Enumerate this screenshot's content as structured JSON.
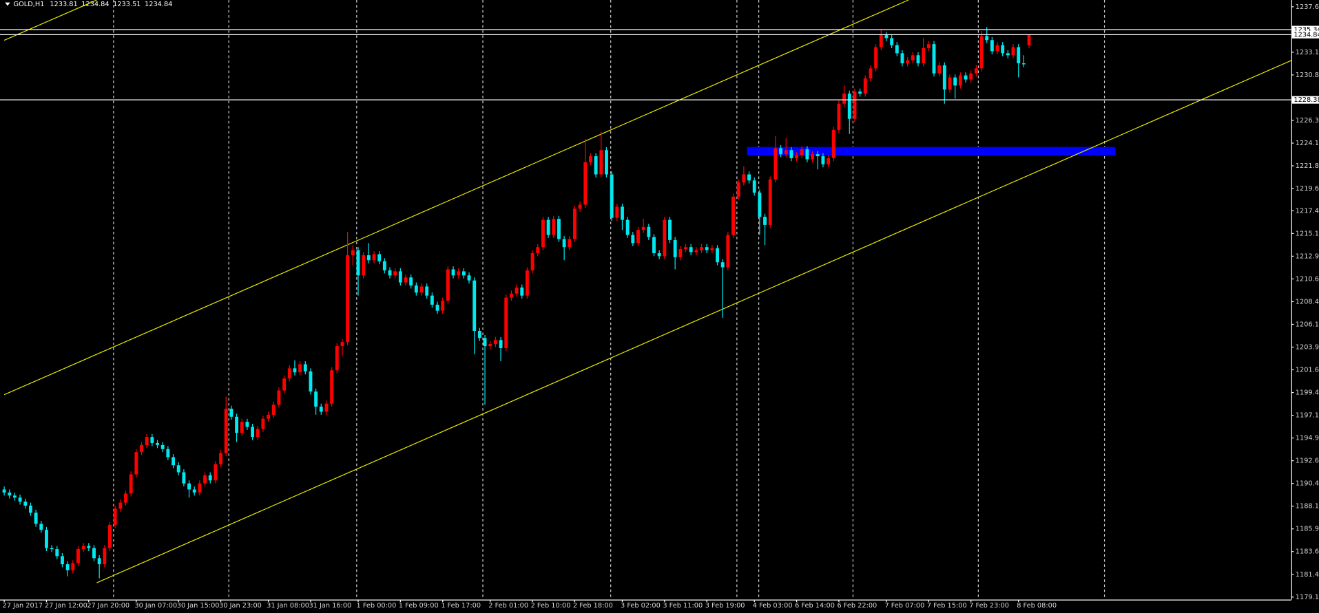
{
  "chart_data": {
    "type": "candlestick",
    "title": "GOLD,H1",
    "up_color": "#ff0000",
    "down_color": "#00e8f0",
    "hline_color": "#ffffff",
    "ylim": [
      1178.9,
      1238.27
    ],
    "yticks": [
      {
        "value": 1237.6,
        "label": "1237.60"
      },
      {
        "value": 1233.1,
        "label": "1233.10"
      },
      1230.85,
      1226.35,
      {
        "value": 1224.1,
        "label": "1224.10"
      },
      1221.85,
      {
        "value": 1219.6,
        "label": "1219.60"
      },
      {
        "value": 1217.4,
        "label": "1217.40"
      },
      1215.15,
      {
        "value": 1212.9,
        "label": "1212.90"
      },
      1210.65,
      {
        "value": 1208.4,
        "label": "1208.40"
      },
      1206.15,
      {
        "value": 1203.9,
        "label": "1203.90"
      },
      1201.65,
      {
        "value": 1199.4,
        "label": "1199.40"
      },
      1197.15,
      {
        "value": 1194.9,
        "label": "1194.90"
      },
      1192.65,
      {
        "value": 1190.4,
        "label": "1190.40"
      },
      1188.15,
      {
        "value": 1185.9,
        "label": "1185.90"
      },
      1183.65,
      {
        "value": 1181.4,
        "label": "1181.40"
      },
      1179.15
    ],
    "hlines": [
      1235.34,
      1234.84,
      1228.38
    ],
    "categories": [
      "27 Jan 2017",
      null,
      null,
      null,
      null,
      null,
      null,
      null,
      "27 Jan 12:00",
      null,
      null,
      null,
      null,
      null,
      null,
      null,
      "27 Jan 20:00",
      null,
      null,
      null,
      null,
      null,
      null,
      null,
      null,
      "30 Jan 07:00",
      null,
      null,
      null,
      null,
      null,
      null,
      null,
      "30 Jan 15:00",
      null,
      null,
      null,
      null,
      null,
      null,
      null,
      "30 Jan 23:00",
      null,
      null,
      null,
      null,
      null,
      null,
      null,
      null,
      "31 Jan 08:00",
      null,
      null,
      null,
      null,
      null,
      null,
      null,
      "31 Jan 16:00",
      null,
      null,
      null,
      null,
      null,
      null,
      null,
      null,
      "1 Feb 00:00",
      null,
      null,
      null,
      null,
      null,
      null,
      null,
      "1 Feb 09:00",
      null,
      null,
      null,
      null,
      null,
      null,
      null,
      "1 Feb 17:00",
      null,
      null,
      null,
      null,
      null,
      null,
      null,
      null,
      "2 Feb 01:00",
      null,
      null,
      null,
      null,
      null,
      null,
      null,
      "2 Feb 10:00",
      null,
      null,
      null,
      null,
      null,
      null,
      null,
      "2 Feb 18:00",
      null,
      null,
      null,
      null,
      null,
      null,
      null,
      null,
      "3 Feb 02:00",
      null,
      null,
      null,
      null,
      null,
      null,
      null,
      "3 Feb 11:00",
      null,
      null,
      null,
      null,
      null,
      null,
      null,
      "3 Feb 19:00",
      null,
      null,
      null,
      null,
      null,
      null,
      null,
      null,
      "4 Feb 03:00",
      null,
      null,
      null,
      null,
      null,
      null,
      null,
      "6 Feb 14:00",
      null,
      null,
      null,
      null,
      null,
      null,
      null,
      "6 Feb 22:00",
      null,
      null,
      null,
      null,
      null,
      null,
      null,
      null,
      "7 Feb 07:00",
      null,
      null,
      null,
      null,
      null,
      null,
      null,
      "7 Feb 15:00",
      null,
      null,
      null,
      null,
      null,
      null,
      null,
      "7 Feb 23:00",
      null,
      null,
      null,
      null,
      null,
      null,
      null,
      null,
      "8 Feb 08:00",
      null,
      null
    ],
    "ohlc": [
      [
        1189.8,
        1190.1,
        1189.2,
        1189.5
      ],
      [
        1189.5,
        1189.8,
        1188.9,
        1189.2
      ],
      [
        1189.2,
        1189.5,
        1188.7,
        1189.0
      ],
      [
        1189.0,
        1189.3,
        1188.3,
        1188.6
      ],
      [
        1188.6,
        1188.9,
        1187.9,
        1188.2
      ],
      [
        1188.2,
        1188.5,
        1187.2,
        1187.5
      ],
      [
        1187.5,
        1187.8,
        1186.1,
        1186.4
      ],
      [
        1186.4,
        1186.7,
        1185.5,
        1185.8
      ],
      [
        1185.8,
        1186.1,
        1183.7,
        1184.0
      ],
      [
        1184.0,
        1184.3,
        1183.6,
        1183.9
      ],
      [
        1183.9,
        1184.2,
        1182.9,
        1183.2
      ],
      [
        1183.2,
        1183.5,
        1182.1,
        1182.4
      ],
      [
        1182.4,
        1182.7,
        1181.2,
        1181.8
      ],
      [
        1181.8,
        1182.8,
        1181.5,
        1182.5
      ],
      [
        1182.5,
        1184.2,
        1182.2,
        1183.9
      ],
      [
        1183.9,
        1184.5,
        1183.6,
        1184.2
      ],
      [
        1184.2,
        1184.5,
        1183.7,
        1184.0
      ],
      [
        1184.0,
        1184.3,
        1182.7,
        1183.0
      ],
      [
        1183.0,
        1183.3,
        1181.0,
        1182.4
      ],
      [
        1182.4,
        1184.3,
        1182.1,
        1184.0
      ],
      [
        1184.0,
        1186.6,
        1183.7,
        1186.3
      ],
      [
        1186.3,
        1188.2,
        1186.0,
        1187.9
      ],
      [
        1187.9,
        1188.8,
        1187.6,
        1188.5
      ],
      [
        1188.5,
        1189.7,
        1188.2,
        1189.4
      ],
      [
        1189.4,
        1191.6,
        1189.1,
        1191.3
      ],
      [
        1191.3,
        1193.8,
        1191.0,
        1193.5
      ],
      [
        1193.5,
        1194.5,
        1193.2,
        1194.2
      ],
      [
        1194.2,
        1195.3,
        1193.9,
        1195.0
      ],
      [
        1195.0,
        1195.3,
        1194.1,
        1194.4
      ],
      [
        1194.4,
        1194.7,
        1193.9,
        1194.2
      ],
      [
        1194.2,
        1194.5,
        1193.5,
        1193.8
      ],
      [
        1193.8,
        1194.1,
        1192.7,
        1193.0
      ],
      [
        1193.0,
        1193.3,
        1191.9,
        1192.2
      ],
      [
        1192.2,
        1192.5,
        1191.2,
        1191.5
      ],
      [
        1191.5,
        1191.8,
        1190.1,
        1190.4
      ],
      [
        1190.4,
        1190.7,
        1189.0,
        1189.8
      ],
      [
        1189.8,
        1190.1,
        1189.2,
        1189.5
      ],
      [
        1189.5,
        1190.7,
        1189.2,
        1190.4
      ],
      [
        1190.4,
        1191.5,
        1190.1,
        1191.2
      ],
      [
        1191.2,
        1191.5,
        1190.4,
        1190.7
      ],
      [
        1190.7,
        1192.6,
        1190.4,
        1192.3
      ],
      [
        1192.3,
        1193.7,
        1192.0,
        1193.4
      ],
      [
        1193.4,
        1199.0,
        1193.1,
        1197.8
      ],
      [
        1197.8,
        1198.1,
        1196.7,
        1197.0
      ],
      [
        1197.0,
        1197.3,
        1194.5,
        1195.4
      ],
      [
        1195.4,
        1196.8,
        1195.1,
        1196.5
      ],
      [
        1196.5,
        1196.8,
        1195.7,
        1196.0
      ],
      [
        1196.0,
        1196.3,
        1194.7,
        1195.0
      ],
      [
        1195.0,
        1196.1,
        1194.7,
        1195.8
      ],
      [
        1195.8,
        1197.1,
        1195.5,
        1196.8
      ],
      [
        1196.8,
        1197.5,
        1196.5,
        1197.2
      ],
      [
        1197.2,
        1198.5,
        1196.9,
        1198.2
      ],
      [
        1198.2,
        1199.9,
        1197.9,
        1199.6
      ],
      [
        1199.6,
        1201.1,
        1199.3,
        1200.8
      ],
      [
        1200.8,
        1202.1,
        1200.5,
        1201.8
      ],
      [
        1201.8,
        1202.6,
        1201.1,
        1201.4
      ],
      [
        1201.4,
        1202.5,
        1201.1,
        1202.2
      ],
      [
        1202.2,
        1202.5,
        1201.2,
        1201.5
      ],
      [
        1201.5,
        1201.8,
        1199.2,
        1199.5
      ],
      [
        1199.5,
        1199.8,
        1197.2,
        1198.0
      ],
      [
        1198.0,
        1198.3,
        1197.2,
        1197.5
      ],
      [
        1197.5,
        1198.6,
        1197.2,
        1198.3
      ],
      [
        1198.3,
        1201.9,
        1198.0,
        1201.6
      ],
      [
        1201.6,
        1204.3,
        1201.3,
        1204.0
      ],
      [
        1204.0,
        1204.7,
        1203.0,
        1204.4
      ],
      [
        1204.4,
        1215.3,
        1204.1,
        1213.0
      ],
      [
        1213.0,
        1214.0,
        1212.0,
        1213.5
      ],
      [
        1213.5,
        1213.8,
        1209.0,
        1211.0
      ],
      [
        1211.0,
        1213.3,
        1210.7,
        1213.0
      ],
      [
        1213.0,
        1214.2,
        1212.2,
        1212.5
      ],
      [
        1212.5,
        1213.4,
        1212.2,
        1213.1
      ],
      [
        1213.1,
        1213.4,
        1212.1,
        1212.4
      ],
      [
        1212.4,
        1212.7,
        1211.2,
        1211.5
      ],
      [
        1211.5,
        1211.8,
        1210.7,
        1211.0
      ],
      [
        1211.0,
        1211.7,
        1210.7,
        1211.4
      ],
      [
        1211.4,
        1211.7,
        1210.0,
        1210.3
      ],
      [
        1210.3,
        1211.1,
        1210.0,
        1210.8
      ],
      [
        1210.8,
        1211.1,
        1209.7,
        1210.0
      ],
      [
        1210.0,
        1210.3,
        1209.0,
        1209.3
      ],
      [
        1209.3,
        1210.2,
        1209.0,
        1209.9
      ],
      [
        1209.9,
        1210.2,
        1208.7,
        1209.0
      ],
      [
        1209.0,
        1209.3,
        1207.8,
        1208.1
      ],
      [
        1208.1,
        1208.4,
        1207.2,
        1207.5
      ],
      [
        1207.5,
        1208.8,
        1207.2,
        1208.5
      ],
      [
        1208.5,
        1211.9,
        1208.2,
        1211.6
      ],
      [
        1211.6,
        1211.9,
        1210.7,
        1211.0
      ],
      [
        1211.0,
        1211.7,
        1210.7,
        1211.4
      ],
      [
        1211.4,
        1211.7,
        1210.7,
        1211.0
      ],
      [
        1211.0,
        1211.3,
        1210.2,
        1210.5
      ],
      [
        1210.5,
        1210.8,
        1203.2,
        1205.5
      ],
      [
        1205.5,
        1205.8,
        1204.5,
        1204.8
      ],
      [
        1204.8,
        1205.1,
        1198.2,
        1204.0
      ],
      [
        1204.0,
        1204.5,
        1203.7,
        1204.2
      ],
      [
        1204.2,
        1204.9,
        1203.9,
        1204.6
      ],
      [
        1204.6,
        1204.9,
        1202.5,
        1203.8
      ],
      [
        1203.8,
        1209.1,
        1203.5,
        1208.8
      ],
      [
        1208.8,
        1209.5,
        1208.5,
        1209.2
      ],
      [
        1209.2,
        1210.1,
        1208.9,
        1209.8
      ],
      [
        1209.8,
        1210.1,
        1208.7,
        1209.0
      ],
      [
        1209.0,
        1211.8,
        1208.7,
        1211.5
      ],
      [
        1211.5,
        1213.5,
        1211.2,
        1213.2
      ],
      [
        1213.2,
        1214.1,
        1212.9,
        1213.8
      ],
      [
        1213.8,
        1216.8,
        1213.5,
        1216.5
      ],
      [
        1216.5,
        1216.8,
        1214.7,
        1215.0
      ],
      [
        1215.0,
        1216.9,
        1214.7,
        1216.6
      ],
      [
        1216.6,
        1216.9,
        1214.3,
        1214.6
      ],
      [
        1214.6,
        1214.9,
        1212.5,
        1213.8
      ],
      [
        1213.8,
        1214.9,
        1213.5,
        1214.6
      ],
      [
        1214.6,
        1217.9,
        1214.3,
        1217.6
      ],
      [
        1217.6,
        1218.3,
        1217.3,
        1218.0
      ],
      [
        1218.0,
        1224.5,
        1217.7,
        1222.2
      ],
      [
        1222.2,
        1223.1,
        1221.9,
        1222.8
      ],
      [
        1222.8,
        1223.1,
        1220.7,
        1221.0
      ],
      [
        1221.0,
        1225.2,
        1220.7,
        1223.4
      ],
      [
        1223.4,
        1223.7,
        1220.7,
        1221.0
      ],
      [
        1221.0,
        1221.3,
        1216.4,
        1216.7
      ],
      [
        1216.7,
        1218.1,
        1216.4,
        1217.8
      ],
      [
        1217.8,
        1218.1,
        1215.5,
        1216.5
      ],
      [
        1216.5,
        1216.8,
        1214.7,
        1215.0
      ],
      [
        1215.0,
        1215.3,
        1213.9,
        1214.2
      ],
      [
        1214.2,
        1215.8,
        1213.9,
        1215.5
      ],
      [
        1215.5,
        1216.6,
        1215.2,
        1215.8
      ],
      [
        1215.8,
        1216.1,
        1214.5,
        1214.8
      ],
      [
        1214.8,
        1215.1,
        1212.9,
        1213.2
      ],
      [
        1213.2,
        1213.5,
        1212.6,
        1212.9
      ],
      [
        1212.9,
        1216.8,
        1212.6,
        1216.5
      ],
      [
        1216.5,
        1216.8,
        1214.2,
        1214.5
      ],
      [
        1214.5,
        1214.8,
        1211.6,
        1212.8
      ],
      [
        1212.8,
        1213.9,
        1212.5,
        1213.6
      ],
      [
        1213.6,
        1214.1,
        1213.3,
        1213.8
      ],
      [
        1213.8,
        1214.1,
        1213.0,
        1213.3
      ],
      [
        1213.3,
        1213.8,
        1213.0,
        1213.5
      ],
      [
        1213.5,
        1214.1,
        1213.2,
        1213.8
      ],
      [
        1213.8,
        1214.1,
        1213.2,
        1213.5
      ],
      [
        1213.5,
        1214.0,
        1213.2,
        1213.7
      ],
      [
        1213.7,
        1214.0,
        1212.0,
        1212.3
      ],
      [
        1212.3,
        1212.6,
        1206.8,
        1211.8
      ],
      [
        1211.8,
        1215.3,
        1211.5,
        1215.0
      ],
      [
        1215.0,
        1219.1,
        1214.7,
        1218.8
      ],
      [
        1218.8,
        1220.5,
        1218.5,
        1220.2
      ],
      [
        1220.2,
        1221.8,
        1219.9,
        1221.0
      ],
      [
        1221.0,
        1221.3,
        1220.1,
        1220.4
      ],
      [
        1220.4,
        1220.7,
        1218.9,
        1219.2
      ],
      [
        1219.2,
        1219.5,
        1215.0,
        1216.8
      ],
      [
        1216.8,
        1217.1,
        1214.0,
        1216.0
      ],
      [
        1216.0,
        1220.8,
        1215.7,
        1220.5
      ],
      [
        1220.5,
        1224.8,
        1220.2,
        1223.6
      ],
      [
        1223.6,
        1223.9,
        1222.7,
        1223.0
      ],
      [
        1223.0,
        1224.6,
        1222.7,
        1223.4
      ],
      [
        1223.4,
        1223.7,
        1222.3,
        1222.6
      ],
      [
        1222.6,
        1223.2,
        1222.3,
        1222.9
      ],
      [
        1222.9,
        1223.8,
        1222.6,
        1223.5
      ],
      [
        1223.5,
        1223.8,
        1222.2,
        1222.5
      ],
      [
        1222.5,
        1223.3,
        1222.2,
        1223.0
      ],
      [
        1223.0,
        1223.3,
        1221.5,
        1222.8
      ],
      [
        1222.8,
        1223.1,
        1221.7,
        1222.0
      ],
      [
        1222.0,
        1222.9,
        1221.7,
        1222.6
      ],
      [
        1222.6,
        1225.7,
        1222.3,
        1225.4
      ],
      [
        1225.4,
        1228.3,
        1225.1,
        1228.0
      ],
      [
        1228.0,
        1229.8,
        1227.7,
        1229.0
      ],
      [
        1229.0,
        1229.3,
        1225.0,
        1226.5
      ],
      [
        1226.5,
        1229.5,
        1226.2,
        1229.2
      ],
      [
        1229.2,
        1229.5,
        1228.7,
        1229.0
      ],
      [
        1229.0,
        1230.8,
        1228.7,
        1230.5
      ],
      [
        1230.5,
        1231.8,
        1230.2,
        1231.5
      ],
      [
        1231.5,
        1233.9,
        1231.2,
        1233.6
      ],
      [
        1233.6,
        1235.3,
        1233.3,
        1234.8
      ],
      [
        1234.8,
        1235.1,
        1234.2,
        1234.5
      ],
      [
        1234.5,
        1234.8,
        1233.5,
        1233.8
      ],
      [
        1233.8,
        1234.1,
        1232.7,
        1233.0
      ],
      [
        1233.0,
        1233.3,
        1231.7,
        1232.0
      ],
      [
        1232.0,
        1232.6,
        1231.7,
        1232.3
      ],
      [
        1232.3,
        1233.1,
        1232.0,
        1232.8
      ],
      [
        1232.8,
        1233.1,
        1231.7,
        1232.0
      ],
      [
        1232.0,
        1234.5,
        1231.7,
        1233.5
      ],
      [
        1233.5,
        1234.2,
        1233.2,
        1233.9
      ],
      [
        1233.9,
        1234.2,
        1230.7,
        1231.0
      ],
      [
        1231.0,
        1232.1,
        1230.7,
        1231.8
      ],
      [
        1231.8,
        1232.1,
        1228.0,
        1229.4
      ],
      [
        1229.4,
        1230.9,
        1229.1,
        1230.6
      ],
      [
        1230.6,
        1230.9,
        1228.5,
        1229.8
      ],
      [
        1229.8,
        1231.1,
        1229.5,
        1230.8
      ],
      [
        1230.8,
        1231.1,
        1230.1,
        1230.4
      ],
      [
        1230.4,
        1231.3,
        1230.1,
        1231.0
      ],
      [
        1231.0,
        1231.8,
        1230.7,
        1231.5
      ],
      [
        1231.5,
        1235.2,
        1231.2,
        1234.7
      ],
      [
        1234.7,
        1235.6,
        1234.0,
        1234.3
      ],
      [
        1234.3,
        1234.6,
        1232.9,
        1233.2
      ],
      [
        1233.2,
        1234.1,
        1232.9,
        1233.8
      ],
      [
        1233.8,
        1234.1,
        1232.7,
        1233.0
      ],
      [
        1233.0,
        1233.3,
        1232.5,
        1232.8
      ],
      [
        1232.8,
        1233.9,
        1232.5,
        1233.6
      ],
      [
        1233.6,
        1233.9,
        1230.6,
        1232.0
      ],
      [
        1232.0,
        1232.8,
        1231.6,
        1231.9
      ],
      [
        1233.81,
        1234.84,
        1233.51,
        1234.84
      ]
    ]
  }
}
